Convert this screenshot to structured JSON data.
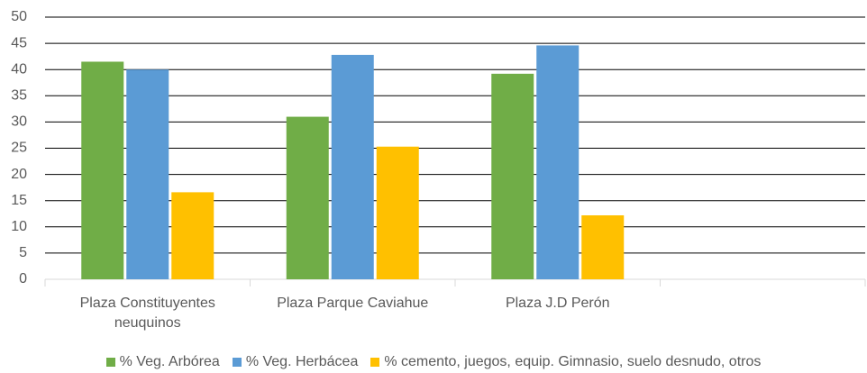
{
  "chart_data": {
    "type": "bar",
    "categories": [
      "Plaza Constituyentes neuquinos",
      "Plaza Parque Caviahue",
      "Plaza J.D Perón",
      null
    ],
    "series": [
      {
        "name": "% Veg. Arbórea",
        "color": "#70ad47",
        "values": [
          41.5,
          31,
          39.2,
          null
        ]
      },
      {
        "name": "% Veg. Herbácea",
        "color": "#5b9bd5",
        "values": [
          40,
          42.8,
          44.6,
          null
        ]
      },
      {
        "name": "% cemento, juegos, equip. Gimnasio, suelo desnudo, otros",
        "color": "#ffc000",
        "values": [
          16.6,
          25.3,
          12.2,
          null
        ]
      }
    ],
    "ylim": [
      0,
      50
    ],
    "yticks": [
      0,
      5,
      10,
      15,
      20,
      25,
      30,
      35,
      40,
      45,
      50
    ],
    "grid": true,
    "legend": "bottom"
  }
}
